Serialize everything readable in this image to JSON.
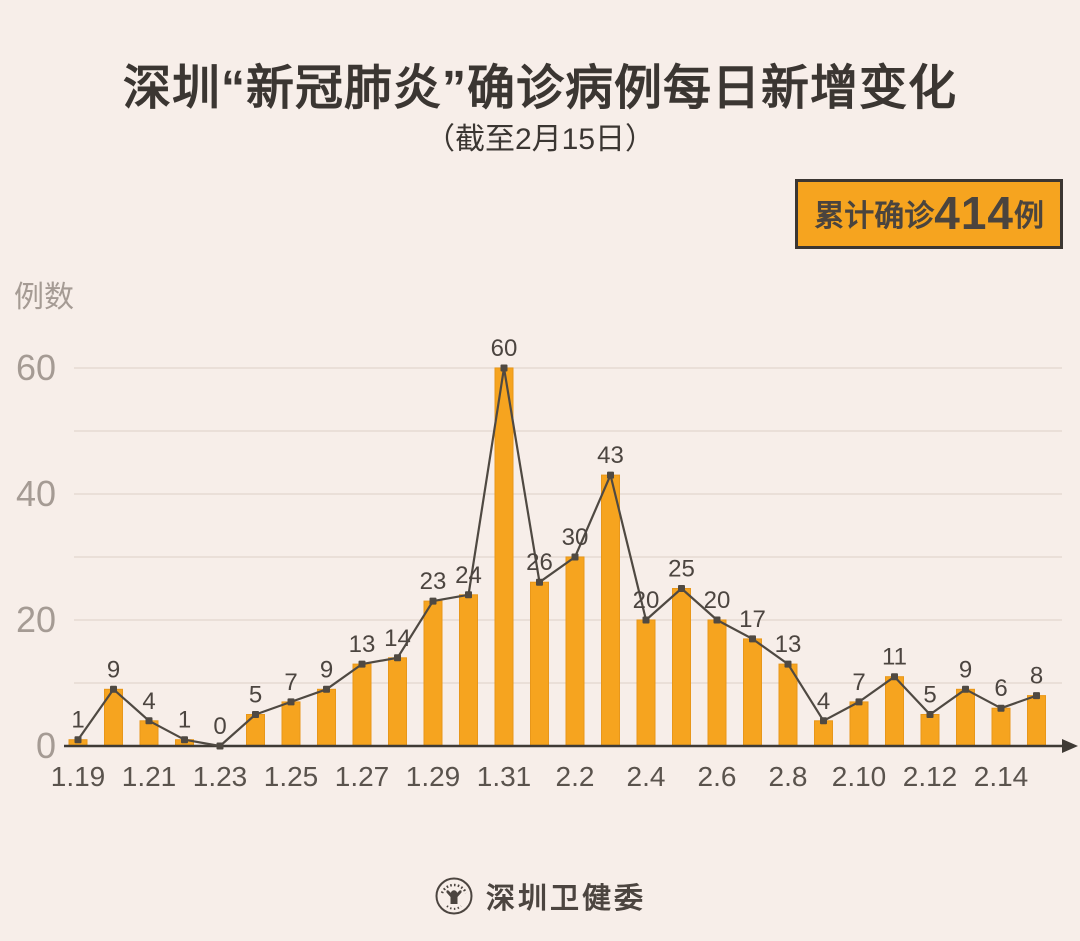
{
  "title": "深圳“新冠肺炎”确诊病例每日新增变化",
  "subtitle": "（截至2月15日）",
  "badge": {
    "prefix": "累计确诊",
    "number": "414",
    "suffix": "例"
  },
  "y_axis_title": "例数",
  "footer": {
    "org": "深圳卫健委",
    "logo": "shenzhen-health-commission-emblem"
  },
  "colors": {
    "background": "#F7EEE9",
    "bar_fill": "#F6A41F",
    "bar_edge": "#E8971A",
    "line": "#4F4942",
    "marker": "#4F4942",
    "value_label": "#4C4540",
    "axis": "#3F3A35",
    "gridline": "#EADFD8",
    "y_tick_label": "#A59B94",
    "x_tick_label": "#5A534D",
    "title_text": "#3B3632",
    "badge_bg": "#F6A41F",
    "badge_border": "#3B3632",
    "badge_text": "#4A443E"
  },
  "chart_data": {
    "type": "bar",
    "overlay": "line",
    "title": "深圳“新冠肺炎”确诊病例每日新增变化（截至2月15日）",
    "xlabel": "",
    "ylabel": "例数",
    "categories": [
      "1.19",
      "1.20",
      "1.21",
      "1.22",
      "1.23",
      "1.24",
      "1.25",
      "1.26",
      "1.27",
      "1.28",
      "1.29",
      "1.30",
      "1.31",
      "2.1",
      "2.2",
      "2.3",
      "2.4",
      "2.5",
      "2.6",
      "2.7",
      "2.8",
      "2.9",
      "2.10",
      "2.11",
      "2.12",
      "2.13",
      "2.14",
      "2.15"
    ],
    "values": [
      1,
      9,
      4,
      1,
      0,
      5,
      7,
      9,
      13,
      14,
      23,
      24,
      60,
      26,
      30,
      43,
      20,
      25,
      20,
      17,
      13,
      4,
      7,
      11,
      5,
      9,
      6,
      8
    ],
    "x_tick_labels": [
      "1.19",
      "1.21",
      "1.23",
      "1.25",
      "1.27",
      "1.29",
      "1.31",
      "2.2",
      "2.4",
      "2.6",
      "2.8",
      "2.10",
      "2.12",
      "2.14"
    ],
    "y_ticks": [
      0,
      20,
      40,
      60
    ],
    "ylim": [
      0,
      63
    ],
    "grid_interval": 10,
    "grid": true,
    "legend_position": "none",
    "cumulative_total": 414
  }
}
